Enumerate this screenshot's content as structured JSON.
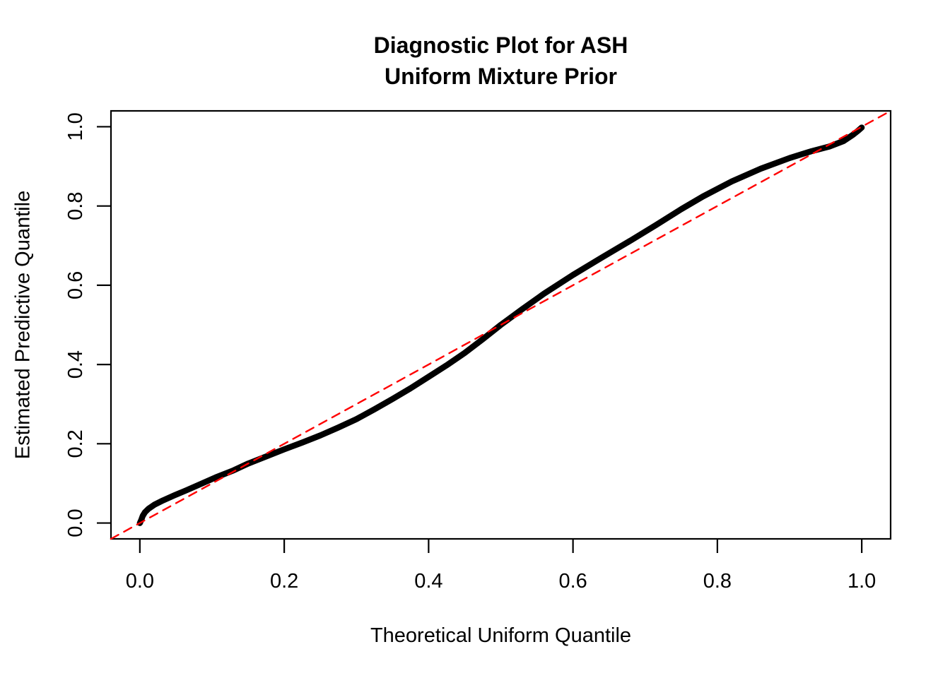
{
  "chart_data": {
    "type": "line",
    "title_lines": [
      "Diagnostic Plot for ASH",
      "Uniform Mixture Prior"
    ],
    "xlabel": "Theoretical Uniform Quantile",
    "ylabel": "Estimated Predictive Quantile",
    "xlim": [
      -0.04,
      1.04
    ],
    "ylim": [
      -0.04,
      1.04
    ],
    "grid": false,
    "legend": "none",
    "x_ticks": [
      {
        "value": 0.0,
        "label": "0.0"
      },
      {
        "value": 0.2,
        "label": "0.2"
      },
      {
        "value": 0.4,
        "label": "0.4"
      },
      {
        "value": 0.6,
        "label": "0.6"
      },
      {
        "value": 0.8,
        "label": "0.8"
      },
      {
        "value": 1.0,
        "label": "1.0"
      }
    ],
    "y_ticks": [
      {
        "value": 0.0,
        "label": "0.0"
      },
      {
        "value": 0.2,
        "label": "0.2"
      },
      {
        "value": 0.4,
        "label": "0.4"
      },
      {
        "value": 0.6,
        "label": "0.6"
      },
      {
        "value": 0.8,
        "label": "0.8"
      },
      {
        "value": 1.0,
        "label": "1.0"
      }
    ],
    "series": [
      {
        "name": "estimated-predictive-quantile-curve",
        "style": "thick-solid-points",
        "color": "#000000",
        "line_width": 8.5,
        "points": [
          [
            0.0,
            0.0
          ],
          [
            0.002,
            0.008
          ],
          [
            0.004,
            0.018
          ],
          [
            0.007,
            0.027
          ],
          [
            0.012,
            0.036
          ],
          [
            0.02,
            0.046
          ],
          [
            0.032,
            0.057
          ],
          [
            0.048,
            0.07
          ],
          [
            0.065,
            0.083
          ],
          [
            0.085,
            0.099
          ],
          [
            0.105,
            0.115
          ],
          [
            0.13,
            0.133
          ],
          [
            0.15,
            0.15
          ],
          [
            0.175,
            0.168
          ],
          [
            0.2,
            0.186
          ],
          [
            0.225,
            0.203
          ],
          [
            0.25,
            0.221
          ],
          [
            0.275,
            0.241
          ],
          [
            0.3,
            0.262
          ],
          [
            0.325,
            0.287
          ],
          [
            0.35,
            0.313
          ],
          [
            0.375,
            0.34
          ],
          [
            0.4,
            0.369
          ],
          [
            0.425,
            0.398
          ],
          [
            0.45,
            0.429
          ],
          [
            0.475,
            0.464
          ],
          [
            0.5,
            0.5
          ],
          [
            0.53,
            0.54
          ],
          [
            0.56,
            0.579
          ],
          [
            0.6,
            0.626
          ],
          [
            0.64,
            0.67
          ],
          [
            0.68,
            0.713
          ],
          [
            0.715,
            0.752
          ],
          [
            0.75,
            0.792
          ],
          [
            0.78,
            0.824
          ],
          [
            0.82,
            0.862
          ],
          [
            0.86,
            0.894
          ],
          [
            0.9,
            0.921
          ],
          [
            0.93,
            0.938
          ],
          [
            0.955,
            0.95
          ],
          [
            0.975,
            0.964
          ],
          [
            0.988,
            0.98
          ],
          [
            0.995,
            0.99
          ],
          [
            1.0,
            0.998
          ]
        ]
      },
      {
        "name": "reference-diagonal-y-equals-x",
        "style": "dashed-line",
        "color": "#FF0000",
        "line_width": 2.4,
        "dash": [
          12,
          9
        ],
        "points": [
          [
            -0.04,
            -0.04
          ],
          [
            1.04,
            1.04
          ]
        ]
      }
    ]
  }
}
